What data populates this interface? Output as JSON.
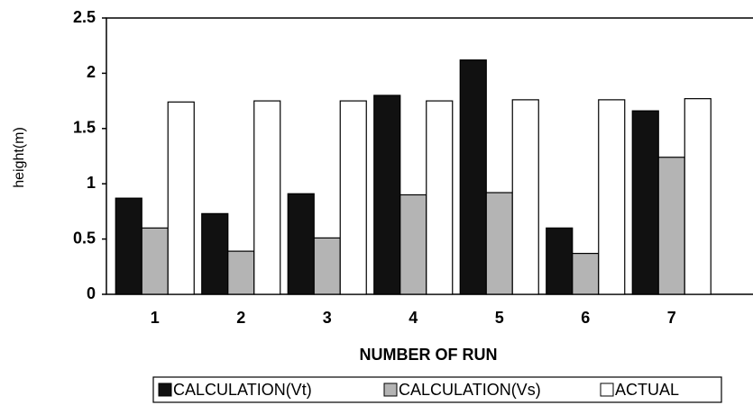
{
  "chart_data": {
    "type": "bar",
    "ylabel": "height(m)",
    "xlabel": "NUMBER OF RUN",
    "categories": [
      "1",
      "2",
      "3",
      "4",
      "5",
      "6",
      "7"
    ],
    "series": [
      {
        "name": "CALCULATION(Vt)",
        "color": "#111111",
        "values": [
          0.87,
          0.73,
          0.91,
          1.8,
          2.12,
          0.6,
          1.66
        ]
      },
      {
        "name": "CALCULATION(Vs)",
        "color": "#b4b4b4",
        "values": [
          0.6,
          0.39,
          0.51,
          0.9,
          0.92,
          0.37,
          1.24
        ]
      },
      {
        "name": "ACTUAL",
        "color": "#ffffff",
        "values": [
          1.74,
          1.75,
          1.75,
          1.75,
          1.76,
          1.76,
          1.77
        ]
      }
    ],
    "ylim": [
      0,
      2.5
    ],
    "yticks": [
      0,
      0.5,
      1,
      1.5,
      2,
      2.5
    ],
    "grid": false,
    "legend": "bottom"
  }
}
